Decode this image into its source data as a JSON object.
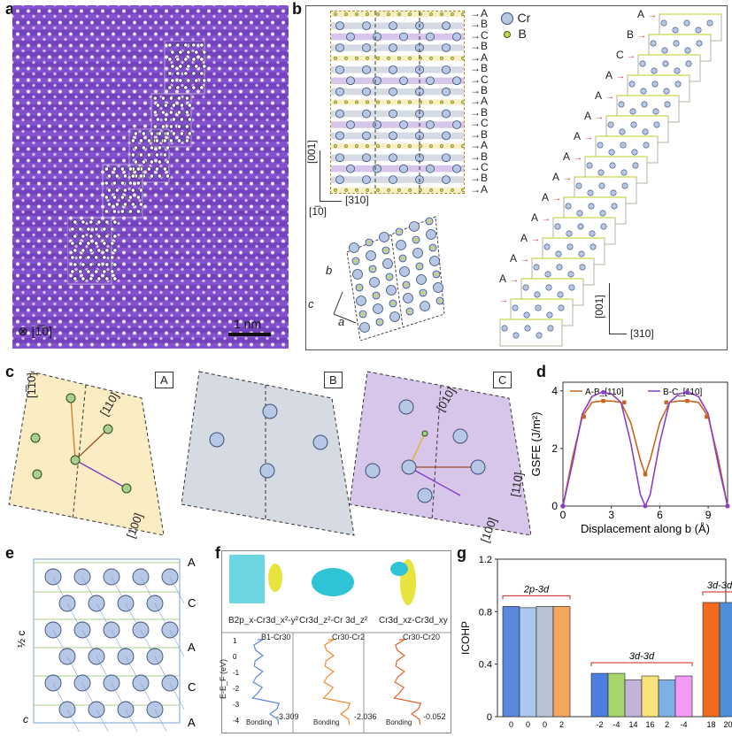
{
  "panel_letters": {
    "a": "a",
    "b": "b",
    "c": "c",
    "d": "d",
    "e": "e",
    "f": "f",
    "g": "g"
  },
  "panel_a": {
    "scale_label": "1 nm",
    "zone_axis": "⊗ [1̅0]"
  },
  "panel_b": {
    "legend": [
      {
        "label": "Cr",
        "color": "#b7c7e6"
      },
      {
        "label": "B",
        "color": "#c9d64a"
      }
    ],
    "stack_letters": [
      "A",
      "B",
      "C",
      "B",
      "A",
      "B",
      "C",
      "B",
      "A",
      "B",
      "C",
      "B",
      "A",
      "B",
      "C",
      "B",
      "A"
    ],
    "axis_001": "[001]",
    "axis_310": "[310]",
    "axis_110": "[1̅0]",
    "b_label": "b",
    "c_label": "c",
    "a_label": "a",
    "step_labels": [
      "A",
      "B",
      "C",
      "A",
      "A",
      "A",
      "A",
      "A",
      "A",
      "A",
      "A",
      "A",
      "A",
      "A",
      "A",
      "A",
      "A"
    ],
    "right_axis_001": "[001]",
    "right_axis_310": "[310]"
  },
  "panel_c": {
    "boxes": [
      {
        "name": "A",
        "color": "#fbedc3",
        "dir1": "[1̅10]",
        "dir2": "[110]",
        "dir3": "[100]"
      },
      {
        "name": "B",
        "color": "#d5dae3"
      },
      {
        "name": "C",
        "color": "#d8c6ea",
        "dir1": "[010]",
        "dir2": "[110]",
        "dir3": "[100]"
      }
    ]
  },
  "panel_e": {
    "layers": [
      "A",
      "C",
      "A",
      "C",
      "A"
    ],
    "b_labels": [
      "B2",
      "B4",
      "B3",
      "B1",
      "B7",
      "B5",
      "B16",
      "B14",
      "B9",
      "B12",
      "B11",
      "B10"
    ],
    "cr_labels": [
      "Cr31",
      "Cr32",
      "Cr14",
      "Cr16",
      "Cr6",
      "Cr4",
      "Cr30",
      "Cr18",
      "Cr23",
      "Cr25",
      "Cr7",
      "Cr5",
      "Cr31",
      "Cr29"
    ],
    "half_c": "½ c",
    "c": "c"
  },
  "panel_f": {
    "orbital_titles": [
      "B2p_x-Cr3d_x²-y²",
      "Cr3d_z²-Cr 3d_z²",
      "Cr3d_xz-Cr3d_xy"
    ],
    "legends": [
      "B1-Cr30",
      "Cr30-Cr2",
      "Cr30-Cr20"
    ],
    "values": [
      "-3.309",
      "-2.036",
      "-0.052"
    ],
    "bonding": "Bonding",
    "ylabel": "E-E_F (eV)",
    "yticks": [
      "1",
      "0",
      "-1",
      "-2",
      "-3",
      "-4"
    ]
  },
  "chart_data": [
    {
      "type": "line",
      "title": "",
      "xlabel": "Displacement along b (Å)",
      "ylabel": "GSFE (J/m²)",
      "xlim": [
        0,
        10.2
      ],
      "ylim": [
        0,
        4.3
      ],
      "xticks": [
        0,
        3,
        6,
        9
      ],
      "yticks": [
        0,
        2,
        4
      ],
      "legend_position": "top",
      "series": [
        {
          "name": "A-B_[110]",
          "color": "#c8641c",
          "x": [
            0,
            0.6,
            1.2,
            1.8,
            2.4,
            3.0,
            3.6,
            4.2,
            4.8,
            5.1,
            5.4,
            6.0,
            6.6,
            7.2,
            7.8,
            8.4,
            9.0,
            9.6,
            10.2
          ],
          "y": [
            0,
            1.7,
            3.1,
            3.6,
            3.65,
            3.65,
            3.6,
            2.9,
            1.6,
            1.1,
            1.6,
            2.9,
            3.6,
            3.65,
            3.65,
            3.6,
            3.1,
            1.7,
            0
          ]
        },
        {
          "name": "B-C_[110]",
          "color": "#8b3fc9",
          "x": [
            0,
            0.6,
            1.2,
            1.8,
            2.4,
            3.0,
            3.6,
            4.2,
            4.8,
            5.1,
            5.4,
            6.0,
            6.6,
            7.2,
            7.8,
            8.4,
            9.0,
            9.6,
            10.2
          ],
          "y": [
            0,
            1.5,
            3.2,
            3.8,
            3.95,
            3.9,
            3.6,
            2.2,
            0.4,
            0,
            0.4,
            2.2,
            3.6,
            3.9,
            3.95,
            3.8,
            3.2,
            1.5,
            0
          ]
        }
      ],
      "markers": [
        {
          "series": "A-B_[110]",
          "x": [
            0,
            1.3,
            2.5,
            3.8,
            5.1,
            6.4,
            7.7,
            8.9,
            10.2
          ],
          "y": [
            0,
            3.1,
            3.65,
            3.6,
            1.1,
            3.6,
            3.65,
            3.1,
            0
          ]
        },
        {
          "series": "B-C_[110]",
          "x": [
            0,
            2.5,
            5.1,
            7.7,
            10.2
          ],
          "y": [
            0,
            3.95,
            0,
            3.95,
            0
          ]
        }
      ]
    },
    {
      "type": "bar",
      "title": "",
      "ylabel": "ICOHP",
      "ylim": [
        0,
        1.2
      ],
      "yticks": [
        0,
        0.4,
        0.8,
        1.2
      ],
      "groups": [
        {
          "label": "2p-3d",
          "bars": [
            {
              "value": 0.84,
              "color": "#5b86dd"
            },
            {
              "value": 0.83,
              "color": "#a9c7ef"
            },
            {
              "value": 0.84,
              "color": "#b9c2d4"
            },
            {
              "value": 0.84,
              "color": "#f3a75e"
            }
          ]
        },
        {
          "label": "3d-3d",
          "bars": [
            {
              "value": 0.33,
              "color": "#4c7fe0"
            },
            {
              "value": 0.33,
              "color": "#a8d56b"
            },
            {
              "value": 0.28,
              "color": "#c3b3d9"
            },
            {
              "value": 0.31,
              "color": "#f7e37a"
            },
            {
              "value": 0.28,
              "color": "#7fb0e5"
            },
            {
              "value": 0.31,
              "color": "#f59af4"
            }
          ]
        },
        {
          "label": "3d-3d",
          "bars": [
            {
              "value": 0.87,
              "color": "#f26b1c"
            },
            {
              "value": 0.87,
              "color": "#4f8ed8"
            }
          ]
        }
      ],
      "tick_labels": [
        "0",
        "0",
        "0",
        "2",
        "-2",
        "-4",
        "14",
        "16",
        "2",
        "-4",
        "18",
        "20"
      ]
    }
  ]
}
